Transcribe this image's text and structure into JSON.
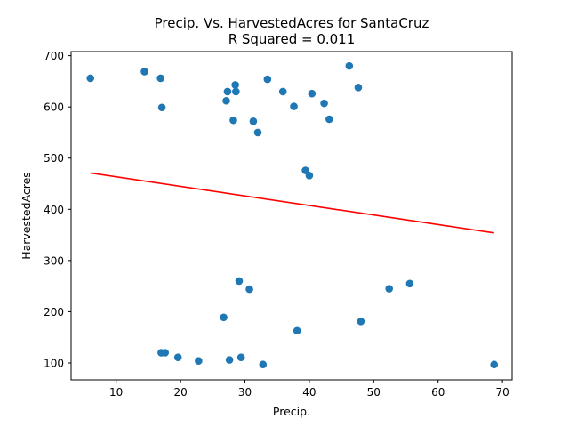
{
  "chart_data": {
    "type": "scatter",
    "title": "Precip. Vs. HarvestedAcres for SantaCruz",
    "subtitle": "R Squared =  0.011",
    "xlabel": "Precip.",
    "ylabel": "HarvestedAcres",
    "xlim": [
      3,
      71.5
    ],
    "ylim": [
      67,
      708
    ],
    "xticks": [
      10,
      20,
      30,
      40,
      50,
      60,
      70
    ],
    "yticks": [
      100,
      200,
      300,
      400,
      500,
      600,
      700
    ],
    "grid": false,
    "point_color": "#1f77b4",
    "line_color": "#ff0000",
    "points": [
      {
        "x": 6.0,
        "y": 656
      },
      {
        "x": 14.4,
        "y": 669
      },
      {
        "x": 16.9,
        "y": 656
      },
      {
        "x": 17.1,
        "y": 599
      },
      {
        "x": 17.0,
        "y": 120
      },
      {
        "x": 17.6,
        "y": 120
      },
      {
        "x": 19.6,
        "y": 111
      },
      {
        "x": 22.8,
        "y": 104
      },
      {
        "x": 26.7,
        "y": 189
      },
      {
        "x": 27.1,
        "y": 612
      },
      {
        "x": 27.3,
        "y": 630
      },
      {
        "x": 27.6,
        "y": 106
      },
      {
        "x": 28.2,
        "y": 574
      },
      {
        "x": 28.5,
        "y": 643
      },
      {
        "x": 28.6,
        "y": 630
      },
      {
        "x": 29.1,
        "y": 260
      },
      {
        "x": 29.4,
        "y": 111
      },
      {
        "x": 30.7,
        "y": 244
      },
      {
        "x": 31.3,
        "y": 572
      },
      {
        "x": 32.0,
        "y": 550
      },
      {
        "x": 32.8,
        "y": 97
      },
      {
        "x": 33.5,
        "y": 654
      },
      {
        "x": 35.9,
        "y": 630
      },
      {
        "x": 37.6,
        "y": 601
      },
      {
        "x": 38.1,
        "y": 163
      },
      {
        "x": 39.4,
        "y": 476
      },
      {
        "x": 40.0,
        "y": 466
      },
      {
        "x": 40.4,
        "y": 626
      },
      {
        "x": 42.3,
        "y": 607
      },
      {
        "x": 43.1,
        "y": 576
      },
      {
        "x": 46.2,
        "y": 680
      },
      {
        "x": 47.6,
        "y": 638
      },
      {
        "x": 48.0,
        "y": 181
      },
      {
        "x": 52.4,
        "y": 245
      },
      {
        "x": 55.6,
        "y": 255
      },
      {
        "x": 68.7,
        "y": 97
      }
    ],
    "regression_line": {
      "x": [
        6.0,
        68.7
      ],
      "y": [
        471,
        354
      ]
    }
  }
}
